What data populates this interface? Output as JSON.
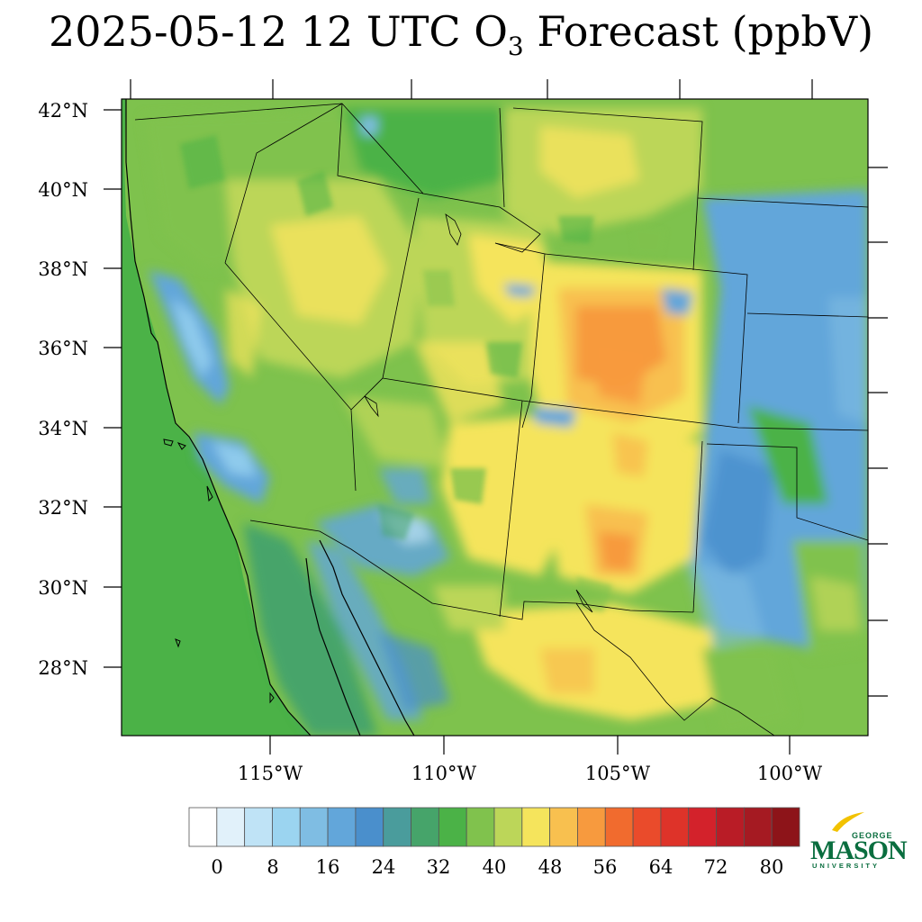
{
  "title": {
    "prefix": "2025-05-12 12 UTC O",
    "subscript": "3",
    "suffix": " Forecast (ppbV)"
  },
  "map": {
    "lat_labels": [
      "42°N",
      "40°N",
      "38°N",
      "36°N",
      "34°N",
      "32°N",
      "30°N",
      "28°N"
    ],
    "lon_labels": [
      "115°W",
      "110°W",
      "105°W",
      "100°W"
    ],
    "ocean_color": "#4bb247",
    "land_color": "#7ec24d"
  },
  "colorbar": {
    "tick_labels": [
      "0",
      "8",
      "16",
      "24",
      "32",
      "40",
      "48",
      "56",
      "64",
      "72",
      "80"
    ],
    "colors": [
      "#ffffff",
      "#e1f1fa",
      "#bfe3f6",
      "#9bd4f0",
      "#7fbde3",
      "#62a6da",
      "#4a8fcc",
      "#4a9c9c",
      "#46a46a",
      "#4bb247",
      "#80c24d",
      "#bcd659",
      "#f5e45c",
      "#f8c04f",
      "#f79a3e",
      "#f16b2e",
      "#ea4b2b",
      "#de3329",
      "#d3222b",
      "#b91c26",
      "#a51a22",
      "#8d1419"
    ]
  },
  "logo": {
    "line1": "GEORGE",
    "line2": "MASON",
    "line3": "UNIVERSITY",
    "color": "#0a6e3f",
    "accent": "#f2c200"
  }
}
